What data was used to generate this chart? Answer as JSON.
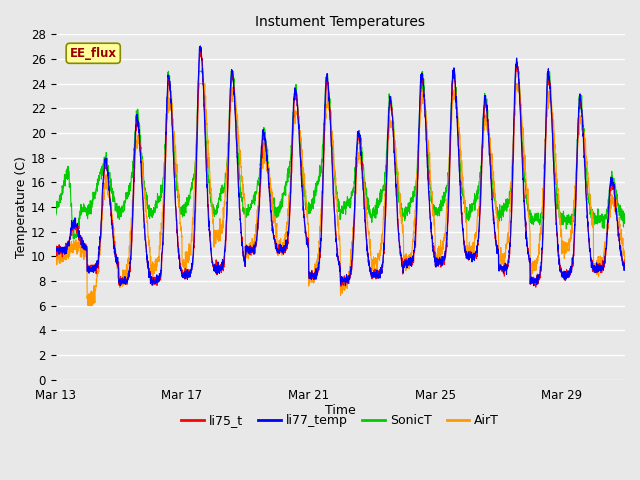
{
  "title": "Instument Temperatures",
  "xlabel": "Time",
  "ylabel": "Temperature (C)",
  "ylim": [
    0,
    28
  ],
  "yticks": [
    0,
    2,
    4,
    6,
    8,
    10,
    12,
    14,
    16,
    18,
    20,
    22,
    24,
    26,
    28
  ],
  "xtick_labels": [
    "Mar 13",
    "Mar 17",
    "Mar 21",
    "Mar 25",
    "Mar 29"
  ],
  "xtick_positions": [
    0,
    4,
    8,
    12,
    16
  ],
  "xlim": [
    0,
    18
  ],
  "bg_color": "#e8e8e8",
  "grid_color": "#ffffff",
  "line_colors": {
    "li75_t": "#ff0000",
    "li77_temp": "#0000ff",
    "SonicT": "#00cc00",
    "AirT": "#ff9900"
  },
  "legend_label_box": "EE_flux",
  "legend_box_bg": "#ffff99",
  "legend_box_border": "#cc0000",
  "legend_box_text_color": "#990000"
}
